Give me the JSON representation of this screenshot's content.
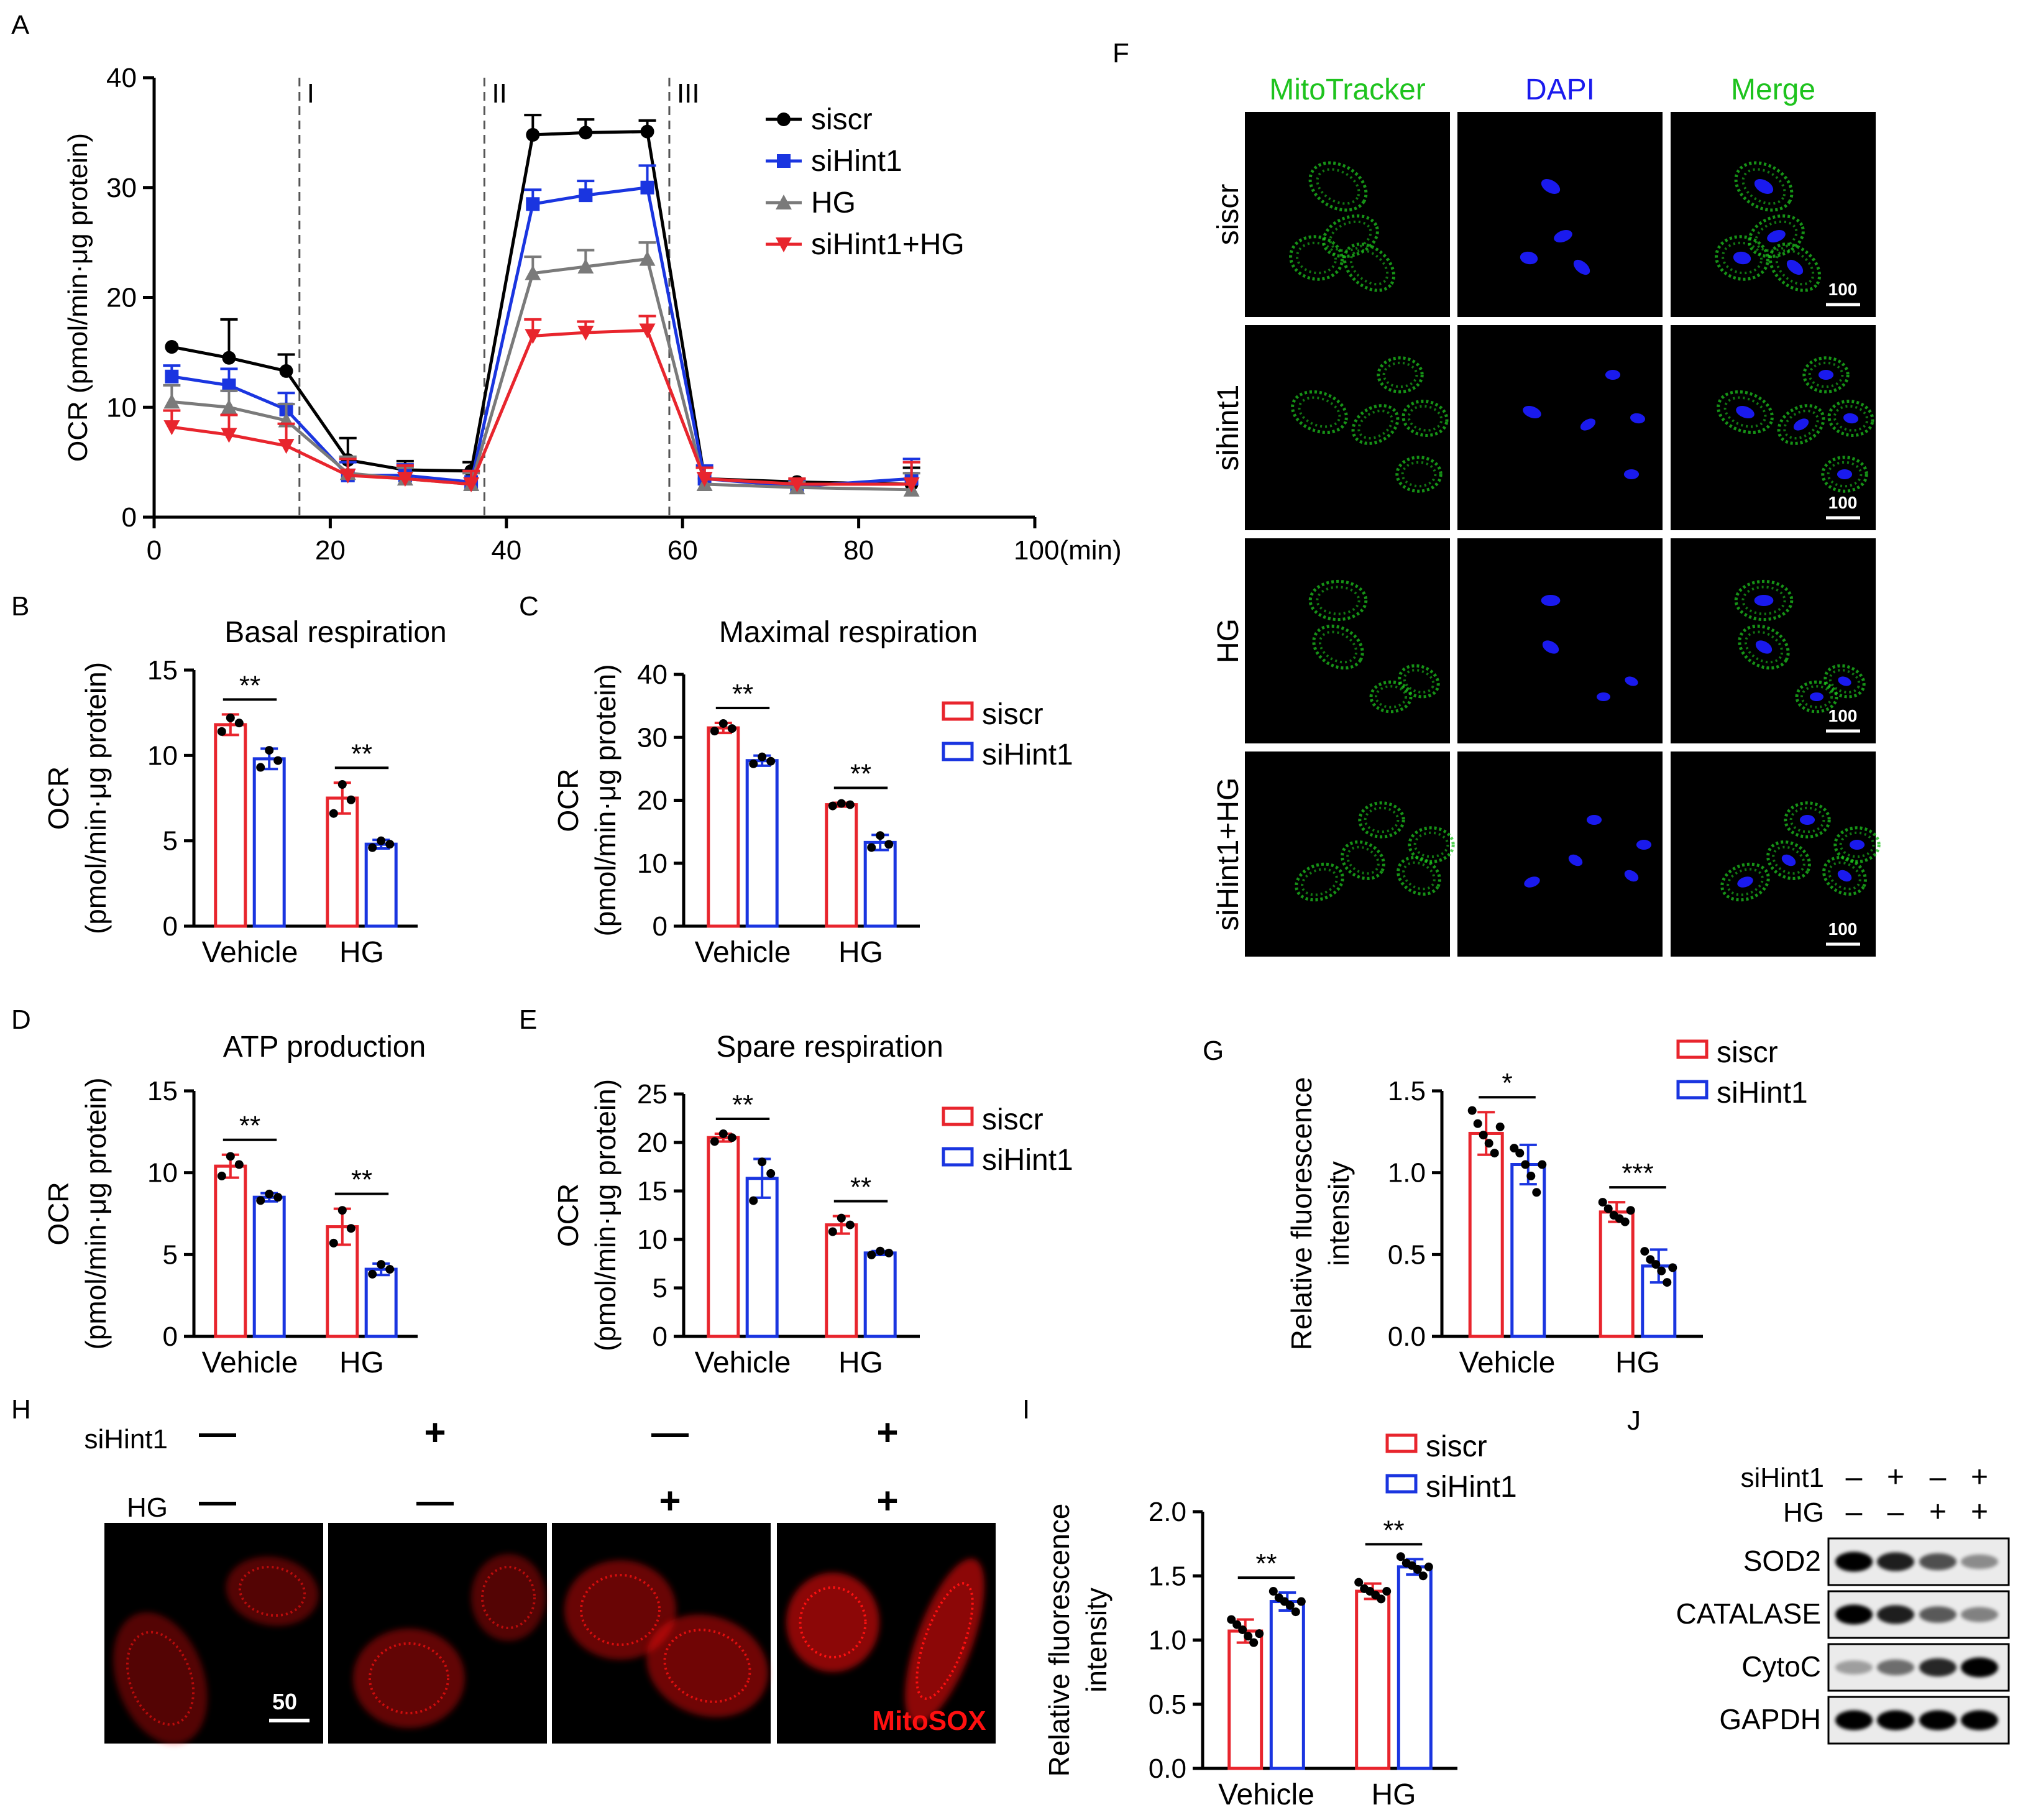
{
  "colors": {
    "siscr": "#e8252d",
    "siHint1": "#1a35e0",
    "HG": "#7a7a7a",
    "siHint1_HG": "#e8252d",
    "siscr_line": "#000000",
    "mito": "#1ec31e",
    "dapi": "#1a1aee",
    "mitosox": "#ff1010"
  },
  "panel_letters": {
    "A": "A",
    "B": "B",
    "C": "C",
    "D": "D",
    "E": "E",
    "F": "F",
    "G": "G",
    "H": "H",
    "I": "I",
    "J": "J"
  },
  "chart_data": [
    {
      "id": "A",
      "type": "line",
      "ylabel": "OCR (pmol/min·μg protein)",
      "xunit": "(min)",
      "xlim": [
        0,
        100
      ],
      "ylim": [
        0,
        40
      ],
      "xticks": [
        "0",
        "20",
        "40",
        "60",
        "80",
        "100"
      ],
      "yticks": [
        "0",
        "10",
        "20",
        "30",
        "40"
      ],
      "injections": [
        {
          "label": "I",
          "x": 16.5
        },
        {
          "label": "II",
          "x": 37.5
        },
        {
          "label": "III",
          "x": 58.5
        }
      ],
      "x": [
        2,
        8.5,
        15,
        22,
        28.5,
        36,
        43,
        49,
        56,
        62.5,
        73,
        86
      ],
      "series": [
        {
          "name": "siscr",
          "color": "#000000",
          "marker": "circle",
          "values": [
            15.5,
            14.5,
            13.3,
            5.2,
            4.3,
            4.2,
            34.8,
            35.0,
            35.1,
            3.5,
            3.2,
            3.0
          ],
          "errors": [
            0,
            3.5,
            1.5,
            2.0,
            0.8,
            0.8,
            1.8,
            1.2,
            1.0,
            1.0,
            0.3,
            1.5
          ]
        },
        {
          "name": "siHint1",
          "color": "#1a35e0",
          "marker": "square",
          "values": [
            12.8,
            12.0,
            9.8,
            3.8,
            3.8,
            3.2,
            28.5,
            29.3,
            30.0,
            3.5,
            2.8,
            3.5
          ],
          "errors": [
            1.0,
            1.5,
            1.5,
            1.2,
            1.0,
            1.0,
            1.3,
            1.3,
            2.0,
            1.2,
            0.5,
            1.8
          ]
        },
        {
          "name": "HG",
          "color": "#7a7a7a",
          "marker": "triangle",
          "values": [
            10.5,
            10.0,
            8.8,
            4.0,
            3.5,
            3.0,
            22.2,
            22.8,
            23.5,
            3.0,
            2.7,
            2.5
          ],
          "errors": [
            1.5,
            1.5,
            1.5,
            1.5,
            1.0,
            1.0,
            1.5,
            1.5,
            1.5,
            1.5,
            0.5,
            1.5
          ]
        },
        {
          "name": "siHint1+HG",
          "color": "#e8252d",
          "marker": "triangle-down",
          "values": [
            8.2,
            7.5,
            6.5,
            3.8,
            3.5,
            3.0,
            16.5,
            16.8,
            17.0,
            3.5,
            3.0,
            3.0
          ],
          "errors": [
            1.5,
            1.8,
            2.0,
            1.5,
            1.2,
            1.2,
            1.5,
            1.0,
            1.3,
            1.0,
            0.5,
            2.0
          ]
        }
      ]
    },
    {
      "id": "B",
      "type": "bar",
      "title": "Basal respiration",
      "ylabel": [
        "OCR",
        "(pmol/min·μg protein)"
      ],
      "categories": [
        "Vehicle",
        "HG"
      ],
      "ylim": [
        0,
        15
      ],
      "yticks": [
        "0",
        "5",
        "10",
        "15"
      ],
      "series": [
        {
          "name": "siscr",
          "values": [
            11.8,
            7.5
          ],
          "errors": [
            0.6,
            0.9
          ],
          "points": [
            [
              11.4,
              12.2,
              11.9
            ],
            [
              6.6,
              8.3,
              7.4
            ]
          ]
        },
        {
          "name": "siHint1",
          "values": [
            9.8,
            4.8
          ],
          "errors": [
            0.6,
            0.25
          ],
          "points": [
            [
              9.3,
              10.3,
              9.7
            ],
            [
              4.6,
              5.0,
              4.8
            ]
          ]
        }
      ],
      "significance": [
        "**",
        "**"
      ]
    },
    {
      "id": "C",
      "type": "bar",
      "title": "Maximal respiration",
      "ylabel": [
        "OCR",
        "(pmol/min·μg protein)"
      ],
      "categories": [
        "Vehicle",
        "HG"
      ],
      "ylim": [
        0,
        40
      ],
      "yticks": [
        "0",
        "10",
        "20",
        "30",
        "40"
      ],
      "series": [
        {
          "name": "siscr",
          "values": [
            31.5,
            19.3
          ],
          "errors": [
            0.8,
            0.3
          ],
          "points": [
            [
              31.0,
              32.2,
              31.4
            ],
            [
              19.1,
              19.5,
              19.3
            ]
          ]
        },
        {
          "name": "siHint1",
          "values": [
            26.3,
            13.3
          ],
          "errors": [
            0.8,
            1.2
          ],
          "points": [
            [
              25.8,
              26.9,
              26.2
            ],
            [
              12.5,
              14.4,
              13.0
            ]
          ]
        }
      ],
      "significance": [
        "**",
        "**"
      ],
      "legend": [
        "siscr",
        "siHint1"
      ]
    },
    {
      "id": "D",
      "type": "bar",
      "title": "ATP production",
      "ylabel": [
        "OCR",
        "(pmol/min·μg protein)"
      ],
      "categories": [
        "Vehicle",
        "HG"
      ],
      "ylim": [
        0,
        15
      ],
      "yticks": [
        "0",
        "5",
        "10",
        "15"
      ],
      "series": [
        {
          "name": "siscr",
          "values": [
            10.4,
            6.7
          ],
          "errors": [
            0.7,
            1.1
          ],
          "points": [
            [
              9.8,
              11.0,
              10.5
            ],
            [
              5.7,
              7.7,
              6.6
            ]
          ]
        },
        {
          "name": "siHint1",
          "values": [
            8.5,
            4.1
          ],
          "errors": [
            0.25,
            0.35
          ],
          "points": [
            [
              8.3,
              8.7,
              8.5
            ],
            [
              3.8,
              4.4,
              4.1
            ]
          ]
        }
      ],
      "significance": [
        "**",
        "**"
      ]
    },
    {
      "id": "E",
      "type": "bar",
      "title": "Spare respiration",
      "ylabel": [
        "OCR",
        "(pmol/min·μg protein)"
      ],
      "categories": [
        "Vehicle",
        "HG"
      ],
      "ylim": [
        0,
        25
      ],
      "yticks": [
        "0",
        "5",
        "10",
        "15",
        "20",
        "25"
      ],
      "series": [
        {
          "name": "siscr",
          "values": [
            20.5,
            11.5
          ],
          "errors": [
            0.4,
            0.9
          ],
          "points": [
            [
              20.1,
              20.9,
              20.5
            ],
            [
              10.8,
              12.2,
              11.5
            ]
          ]
        },
        {
          "name": "siHint1",
          "values": [
            16.3,
            8.6
          ],
          "errors": [
            2.0,
            0.2
          ],
          "points": [
            [
              14.0,
              18.0,
              16.8
            ],
            [
              8.4,
              8.8,
              8.6
            ]
          ]
        }
      ],
      "significance": [
        "**",
        "**"
      ],
      "legend": [
        "siscr",
        "siHint1"
      ]
    },
    {
      "id": "G",
      "type": "bar",
      "ylabel": [
        "Relative fluorescence",
        "intensity"
      ],
      "categories": [
        "Vehicle",
        "HG"
      ],
      "ylim": [
        0,
        1.5
      ],
      "yticks": [
        "0.0",
        "0.5",
        "1.0",
        "1.5"
      ],
      "series": [
        {
          "name": "siscr",
          "values": [
            1.24,
            0.76
          ],
          "errors": [
            0.13,
            0.06
          ],
          "points": [
            [
              1.38,
              1.3,
              1.23,
              1.18,
              1.12,
              1.28
            ],
            [
              0.82,
              0.78,
              0.74,
              0.72,
              0.7,
              0.77
            ]
          ]
        },
        {
          "name": "siHint1",
          "values": [
            1.05,
            0.43
          ],
          "errors": [
            0.12,
            0.1
          ],
          "points": [
            [
              1.15,
              1.12,
              1.05,
              0.98,
              0.88,
              1.05
            ],
            [
              0.52,
              0.47,
              0.44,
              0.4,
              0.33,
              0.42
            ]
          ]
        }
      ],
      "significance": [
        "*",
        "***"
      ],
      "legend": [
        "siscr",
        "siHint1"
      ]
    },
    {
      "id": "I",
      "type": "bar",
      "ylabel": [
        "Relative fluorescence",
        "intensity"
      ],
      "categories": [
        "Vehicle",
        "HG"
      ],
      "ylim": [
        0,
        2.0
      ],
      "yticks": [
        "0.0",
        "0.5",
        "1.0",
        "1.5",
        "2.0"
      ],
      "series": [
        {
          "name": "siscr",
          "values": [
            1.07,
            1.38
          ],
          "errors": [
            0.09,
            0.06
          ],
          "points": [
            [
              1.16,
              1.12,
              1.08,
              1.03,
              0.98,
              1.05
            ],
            [
              1.45,
              1.4,
              1.38,
              1.35,
              1.32,
              1.38
            ]
          ]
        },
        {
          "name": "siHint1",
          "values": [
            1.3,
            1.57
          ],
          "errors": [
            0.07,
            0.06
          ],
          "points": [
            [
              1.38,
              1.33,
              1.3,
              1.27,
              1.22,
              1.3
            ],
            [
              1.65,
              1.6,
              1.58,
              1.55,
              1.5,
              1.57
            ]
          ]
        }
      ],
      "significance": [
        "**",
        "**"
      ],
      "legend": [
        "siscr",
        "siHint1"
      ]
    }
  ],
  "panel_F": {
    "columns": [
      "MitoTracker",
      "DAPI",
      "Merge"
    ],
    "rows": [
      "siscr",
      "sihint1",
      "HG",
      "siHint1+HG"
    ],
    "scale_label": "100"
  },
  "panel_H": {
    "row_labels": [
      "siHint1",
      "HG"
    ],
    "siHint1": [
      "—",
      "+",
      "—",
      "+"
    ],
    "HG": [
      "—",
      "—",
      "+",
      "+"
    ],
    "scale_label": "50",
    "stain_label": "MitoSOX"
  },
  "panel_J": {
    "row_labels": [
      "siHint1",
      "HG"
    ],
    "siHint1": [
      "–",
      "+",
      "–",
      "+"
    ],
    "HG": [
      "–",
      "–",
      "+",
      "+"
    ],
    "proteins": [
      "SOD2",
      "CATALASE",
      "CytoC",
      "GAPDH"
    ],
    "intensity": [
      [
        1.0,
        0.85,
        0.6,
        0.3
      ],
      [
        1.0,
        0.85,
        0.55,
        0.35
      ],
      [
        0.2,
        0.45,
        0.8,
        1.0
      ],
      [
        1.0,
        1.0,
        1.0,
        1.0
      ]
    ]
  }
}
